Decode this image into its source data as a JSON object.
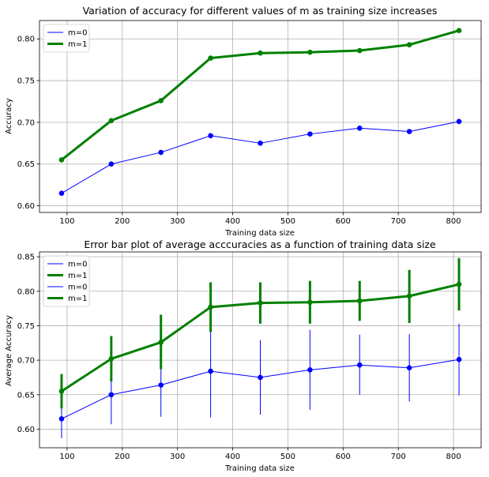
{
  "chart_data": [
    {
      "type": "line",
      "title": "Variation of accuracy for different values of m as training size increases",
      "xlabel": "Training data size",
      "ylabel": "Accuracy",
      "xlim": [
        50,
        850
      ],
      "ylim": [
        0.592,
        0.822
      ],
      "xticks": [
        100,
        200,
        300,
        400,
        500,
        600,
        700,
        800
      ],
      "yticks": [
        0.6,
        0.65,
        0.7,
        0.75,
        0.8
      ],
      "grid": true,
      "legend_position": "top-left",
      "x": [
        90,
        180,
        270,
        360,
        450,
        540,
        630,
        720,
        810
      ],
      "series": [
        {
          "name": "m=0",
          "color": "#0000ff",
          "width": 1,
          "values": [
            0.615,
            0.65,
            0.664,
            0.684,
            0.675,
            0.686,
            0.693,
            0.689,
            0.701
          ]
        },
        {
          "name": "m=1",
          "color": "#008000",
          "width": 3,
          "values": [
            0.655,
            0.702,
            0.726,
            0.777,
            0.783,
            0.784,
            0.786,
            0.793,
            0.81
          ]
        }
      ]
    },
    {
      "type": "line",
      "title": "Error bar plot of average acccuracies as a function of training data size",
      "xlabel": "Training data size",
      "ylabel": "Average Accuracy",
      "xlim": [
        50,
        850
      ],
      "ylim": [
        0.573,
        0.857
      ],
      "xticks": [
        100,
        200,
        300,
        400,
        500,
        600,
        700,
        800
      ],
      "yticks": [
        0.6,
        0.65,
        0.7,
        0.75,
        0.8,
        0.85
      ],
      "grid": true,
      "legend_position": "top-left",
      "legend_entries": [
        {
          "name": "m=0",
          "color": "#0000ff",
          "width": 1
        },
        {
          "name": "m=1",
          "color": "#008000",
          "width": 3
        },
        {
          "name": "m=0",
          "color": "#0000ff",
          "width": 1
        },
        {
          "name": "m=1",
          "color": "#008000",
          "width": 3
        }
      ],
      "x": [
        90,
        180,
        270,
        360,
        450,
        540,
        630,
        720,
        810
      ],
      "series": [
        {
          "name": "m=0",
          "color": "#0000ff",
          "width": 1,
          "values": [
            0.615,
            0.65,
            0.664,
            0.684,
            0.675,
            0.686,
            0.693,
            0.689,
            0.701
          ],
          "err_low": [
            0.587,
            0.607,
            0.618,
            0.617,
            0.621,
            0.628,
            0.65,
            0.64,
            0.649
          ],
          "err_high": [
            0.639,
            0.69,
            0.71,
            0.752,
            0.729,
            0.744,
            0.737,
            0.738,
            0.753
          ]
        },
        {
          "name": "m=1",
          "color": "#008000",
          "width": 3,
          "values": [
            0.655,
            0.702,
            0.726,
            0.777,
            0.783,
            0.784,
            0.786,
            0.793,
            0.81
          ],
          "err_low": [
            0.63,
            0.669,
            0.687,
            0.741,
            0.753,
            0.753,
            0.757,
            0.754,
            0.772
          ],
          "err_high": [
            0.68,
            0.735,
            0.766,
            0.813,
            0.813,
            0.815,
            0.815,
            0.831,
            0.848
          ]
        }
      ]
    }
  ]
}
